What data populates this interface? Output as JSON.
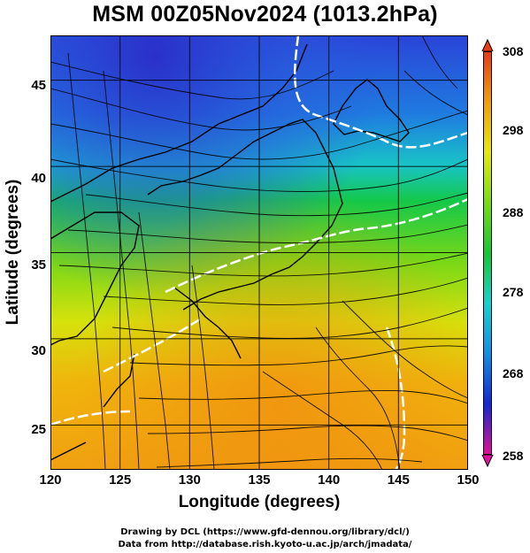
{
  "title": "MSM 00Z05Nov2024 (1013.2hPa)",
  "x_axis": {
    "label": "Longitude (degrees)",
    "ticks": [
      "120",
      "125",
      "130",
      "135",
      "140",
      "145",
      "150"
    ],
    "range": [
      120,
      150
    ]
  },
  "y_axis": {
    "label": "Latitude  (degrees)",
    "ticks": [
      "45",
      "40",
      "35",
      "30",
      "25"
    ],
    "range": [
      22.4,
      47.6
    ]
  },
  "colorbar": {
    "ticks": [
      "308",
      "298",
      "288",
      "278",
      "268",
      "258"
    ],
    "range": [
      258,
      308
    ],
    "palette": [
      "#e0109a",
      "#1428d2",
      "#1090e6",
      "#16d2d0",
      "#14c832",
      "#78dc10",
      "#e8e80a",
      "#f0a00a",
      "#e83c14"
    ]
  },
  "credits": [
    "Drawing by DCL (https://www.gfd-dennou.org/library/dcl/)",
    "Data from http://database.rish.kyoto-u.ac.jp/arch/jmadata/"
  ]
}
